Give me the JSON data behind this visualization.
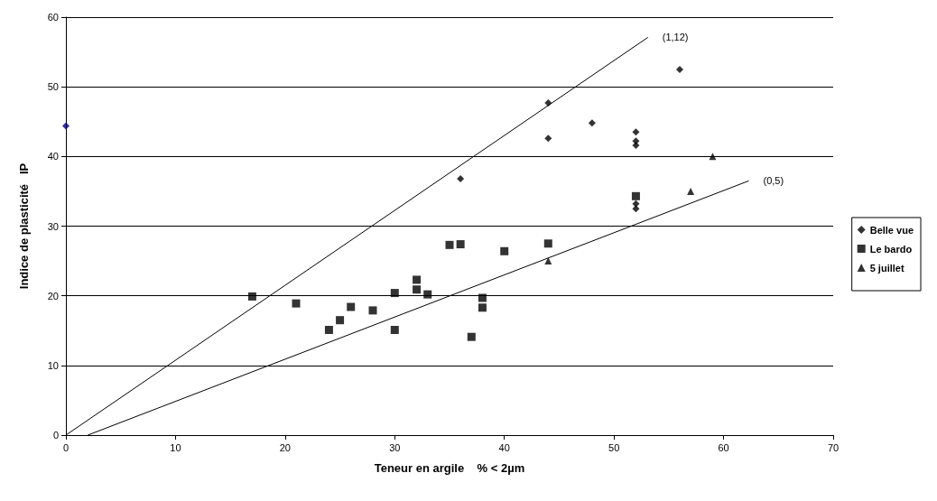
{
  "chart_data": {
    "type": "scatter",
    "xlabel": "Teneur en argile    % < 2µm",
    "ylabel": "Indice de plasticité   IP",
    "xlim": [
      0,
      70
    ],
    "ylim": [
      0,
      60
    ],
    "xticks": [
      0,
      10,
      20,
      30,
      40,
      50,
      60,
      70
    ],
    "yticks": [
      0,
      10,
      20,
      30,
      40,
      50,
      60
    ],
    "grid": "y",
    "legend": "right",
    "series": [
      {
        "name": "Belle vue",
        "color": "#000000",
        "marker": "diamond",
        "colors": [
          "#000080",
          "#000000",
          "#000000",
          "#000000",
          "#000000",
          "#000000",
          "#000000",
          "#000000",
          "#000000",
          "#000000",
          "#000000"
        ],
        "x": [
          0,
          36,
          44,
          44,
          48,
          52,
          52,
          52,
          52,
          52,
          56
        ],
        "values": [
          44.4,
          36.8,
          47.7,
          42.6,
          44.8,
          43.5,
          42.2,
          41.6,
          33.2,
          32.5,
          52.5
        ]
      },
      {
        "name": "Le bardo",
        "color": "#000000",
        "marker": "square",
        "x": [
          17,
          21,
          24,
          25,
          26,
          28,
          30,
          30,
          32,
          32,
          33,
          35,
          36,
          37,
          38,
          38,
          40,
          44,
          52
        ],
        "values": [
          19.9,
          18.9,
          15.1,
          16.5,
          18.4,
          17.9,
          20.4,
          15.1,
          22.3,
          20.9,
          20.2,
          27.3,
          27.4,
          14.1,
          19.7,
          18.3,
          26.4,
          27.5,
          34.3
        ]
      },
      {
        "name": "5 juillet",
        "color": "#000000",
        "marker": "triangle",
        "x": [
          44,
          57,
          59
        ],
        "values": [
          25,
          35,
          40
        ]
      },
      {
        "name": "(1,12)",
        "type": "line",
        "color": "#000000",
        "marker": "none",
        "x": [
          0,
          53.1
        ],
        "values": [
          0,
          57.1
        ]
      },
      {
        "name": "(0,5)",
        "type": "line",
        "color": "#000000",
        "marker": "none",
        "x": [
          2,
          62.3
        ],
        "values": [
          0,
          36.5
        ]
      }
    ]
  }
}
